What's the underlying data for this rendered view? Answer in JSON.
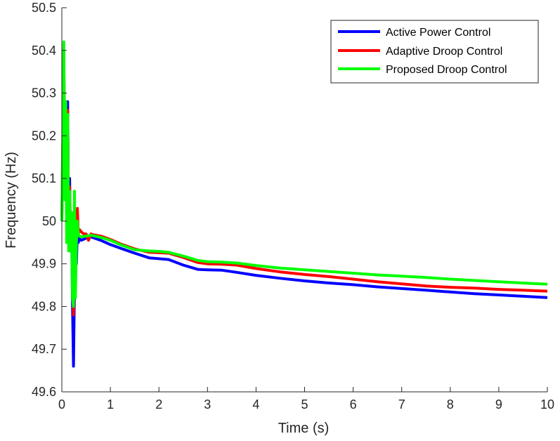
{
  "chart_data": {
    "type": "line",
    "title": "",
    "xlabel": "Time (s)",
    "ylabel": "Frequency (Hz)",
    "xlim": [
      0,
      10
    ],
    "ylim": [
      49.6,
      50.5
    ],
    "xticks": [
      0,
      1,
      2,
      3,
      4,
      5,
      6,
      7,
      8,
      9,
      10
    ],
    "yticks": [
      49.6,
      49.7,
      49.8,
      49.9,
      50,
      50.1,
      50.2,
      50.3,
      50.4,
      50.5
    ],
    "xtick_labels": [
      "0",
      "1",
      "2",
      "3",
      "4",
      "5",
      "6",
      "7",
      "8",
      "9",
      "10"
    ],
    "ytick_labels": [
      "49.6",
      "49.7",
      "49.8",
      "49.9",
      "50",
      "50.1",
      "50.2",
      "50.3",
      "50.4",
      "50.5"
    ],
    "grid": false,
    "legend_position": "top-right",
    "series": [
      {
        "name": "Active Power Control",
        "color": "#0000ff",
        "x": [
          0,
          0.02,
          0.04,
          0.06,
          0.08,
          0.1,
          0.12,
          0.14,
          0.16,
          0.18,
          0.2,
          0.22,
          0.24,
          0.26,
          0.28,
          0.3,
          0.32,
          0.34,
          0.36,
          0.4,
          0.5,
          0.6,
          0.8,
          1.0,
          1.2,
          1.5,
          1.8,
          2.0,
          2.2,
          2.5,
          2.8,
          3.0,
          3.3,
          3.6,
          4.0,
          4.5,
          5.0,
          5.5,
          6.0,
          6.5,
          7.0,
          7.5,
          8.0,
          8.5,
          9.0,
          9.5,
          10.0
        ],
        "y": [
          50.0,
          50.15,
          50.38,
          50.1,
          50.22,
          50.05,
          50.28,
          49.95,
          50.1,
          49.93,
          50.0,
          49.8,
          49.66,
          49.85,
          49.95,
          49.9,
          49.98,
          49.95,
          49.96,
          49.955,
          49.96,
          49.963,
          49.955,
          49.945,
          49.937,
          49.925,
          49.914,
          49.912,
          49.91,
          49.897,
          49.887,
          49.886,
          49.885,
          49.88,
          49.873,
          49.866,
          49.86,
          49.855,
          49.851,
          49.846,
          49.842,
          49.838,
          49.834,
          49.83,
          49.827,
          49.824,
          49.821
        ]
      },
      {
        "name": "Adaptive Droop Control",
        "color": "#ff0000",
        "x": [
          0,
          0.02,
          0.04,
          0.06,
          0.08,
          0.1,
          0.12,
          0.14,
          0.16,
          0.18,
          0.2,
          0.22,
          0.24,
          0.26,
          0.28,
          0.3,
          0.32,
          0.34,
          0.36,
          0.4,
          0.45,
          0.5,
          0.55,
          0.6,
          0.65,
          0.8,
          1.0,
          1.2,
          1.5,
          1.8,
          2.0,
          2.2,
          2.5,
          2.8,
          3.0,
          3.3,
          3.6,
          4.0,
          4.5,
          5.0,
          5.5,
          6.0,
          6.5,
          7.0,
          7.5,
          8.0,
          8.5,
          9.0,
          9.5,
          10.0
        ],
        "y": [
          50.0,
          50.18,
          50.4,
          50.12,
          50.25,
          50.05,
          50.26,
          49.95,
          50.08,
          49.95,
          50.02,
          49.86,
          49.78,
          49.9,
          49.98,
          49.95,
          50.03,
          49.97,
          49.98,
          49.975,
          49.97,
          49.97,
          49.955,
          49.97,
          49.968,
          49.965,
          49.957,
          49.947,
          49.935,
          49.927,
          49.926,
          49.925,
          49.915,
          49.903,
          49.9,
          49.899,
          49.897,
          49.889,
          49.881,
          49.875,
          49.87,
          49.864,
          49.858,
          49.853,
          49.848,
          49.845,
          49.843,
          49.84,
          49.838,
          49.836
        ]
      },
      {
        "name": "Proposed Droop Control",
        "color": "#00ff00",
        "x": [
          0,
          0.02,
          0.04,
          0.06,
          0.08,
          0.1,
          0.12,
          0.14,
          0.16,
          0.18,
          0.2,
          0.22,
          0.24,
          0.26,
          0.28,
          0.3,
          0.32,
          0.34,
          0.36,
          0.4,
          0.5,
          0.6,
          0.8,
          1.0,
          1.2,
          1.5,
          1.8,
          2.0,
          2.2,
          2.5,
          2.8,
          3.0,
          3.3,
          3.6,
          4.0,
          4.5,
          5.0,
          5.5,
          6.0,
          6.5,
          7.0,
          7.5,
          8.0,
          8.5,
          9.0,
          9.5,
          10.0
        ],
        "y": [
          50.0,
          50.2,
          50.42,
          50.05,
          50.28,
          49.95,
          50.25,
          49.93,
          50.07,
          49.93,
          50.02,
          49.82,
          49.8,
          50.07,
          49.82,
          49.95,
          50.0,
          49.97,
          49.965,
          49.963,
          49.965,
          49.967,
          49.962,
          49.955,
          49.945,
          49.933,
          49.93,
          49.929,
          49.927,
          49.918,
          49.908,
          49.905,
          49.904,
          49.902,
          49.896,
          49.89,
          49.886,
          49.882,
          49.878,
          49.874,
          49.871,
          49.868,
          49.864,
          49.861,
          49.858,
          49.855,
          49.852
        ]
      }
    ]
  }
}
